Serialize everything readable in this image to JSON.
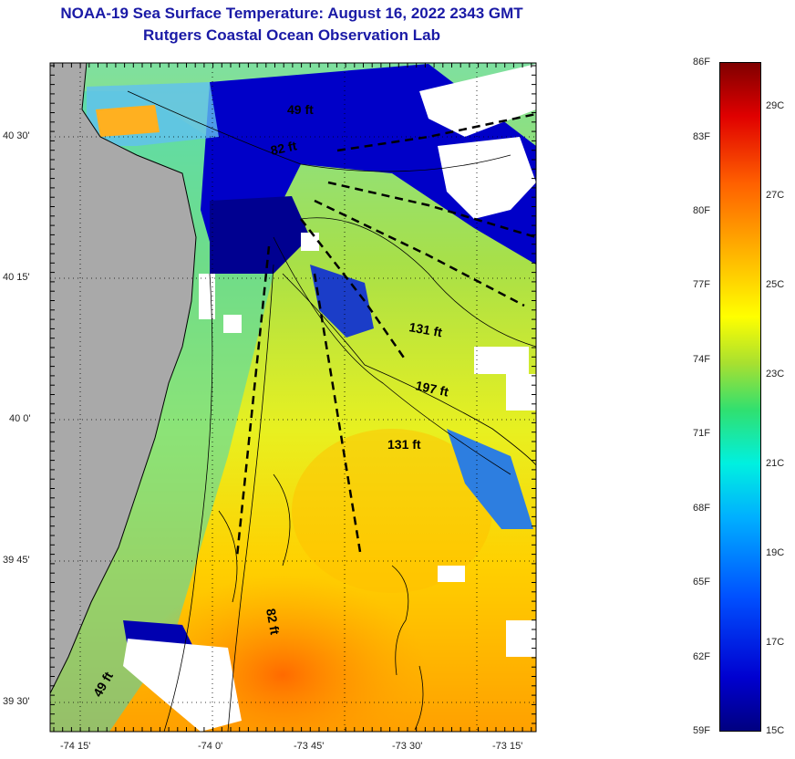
{
  "title": {
    "line1": "NOAA-19 Sea Surface Temperature:  August 16, 2022 2343 GMT",
    "line2": "Rutgers Coastal Ocean Observation Lab"
  },
  "map": {
    "lat_labels": [
      "40 30'",
      "40 15'",
      "40 0'",
      "39 45'",
      "39 30'"
    ],
    "lon_labels": [
      "-74 15'",
      "-74 0'",
      "-73 45'",
      "-73 30'",
      "-73 15'"
    ],
    "depth_labels": [
      "49 ft",
      "82 ft",
      "131 ft",
      "197 ft",
      "131 ft",
      "82 ft",
      "49 ft"
    ],
    "colors": {
      "land": "#a9a9a9",
      "no_data": "#ffffff",
      "cold": "#00008b",
      "warm": "#ff7a00"
    }
  },
  "colorbar": {
    "fahrenheit": [
      "86F",
      "83F",
      "80F",
      "77F",
      "74F",
      "71F",
      "68F",
      "65F",
      "62F",
      "59F"
    ],
    "celsius": [
      "29C",
      "27C",
      "25C",
      "23C",
      "21C",
      "19C",
      "17C",
      "15C"
    ],
    "range_f": [
      59,
      86
    ],
    "range_c": [
      15,
      30
    ]
  }
}
